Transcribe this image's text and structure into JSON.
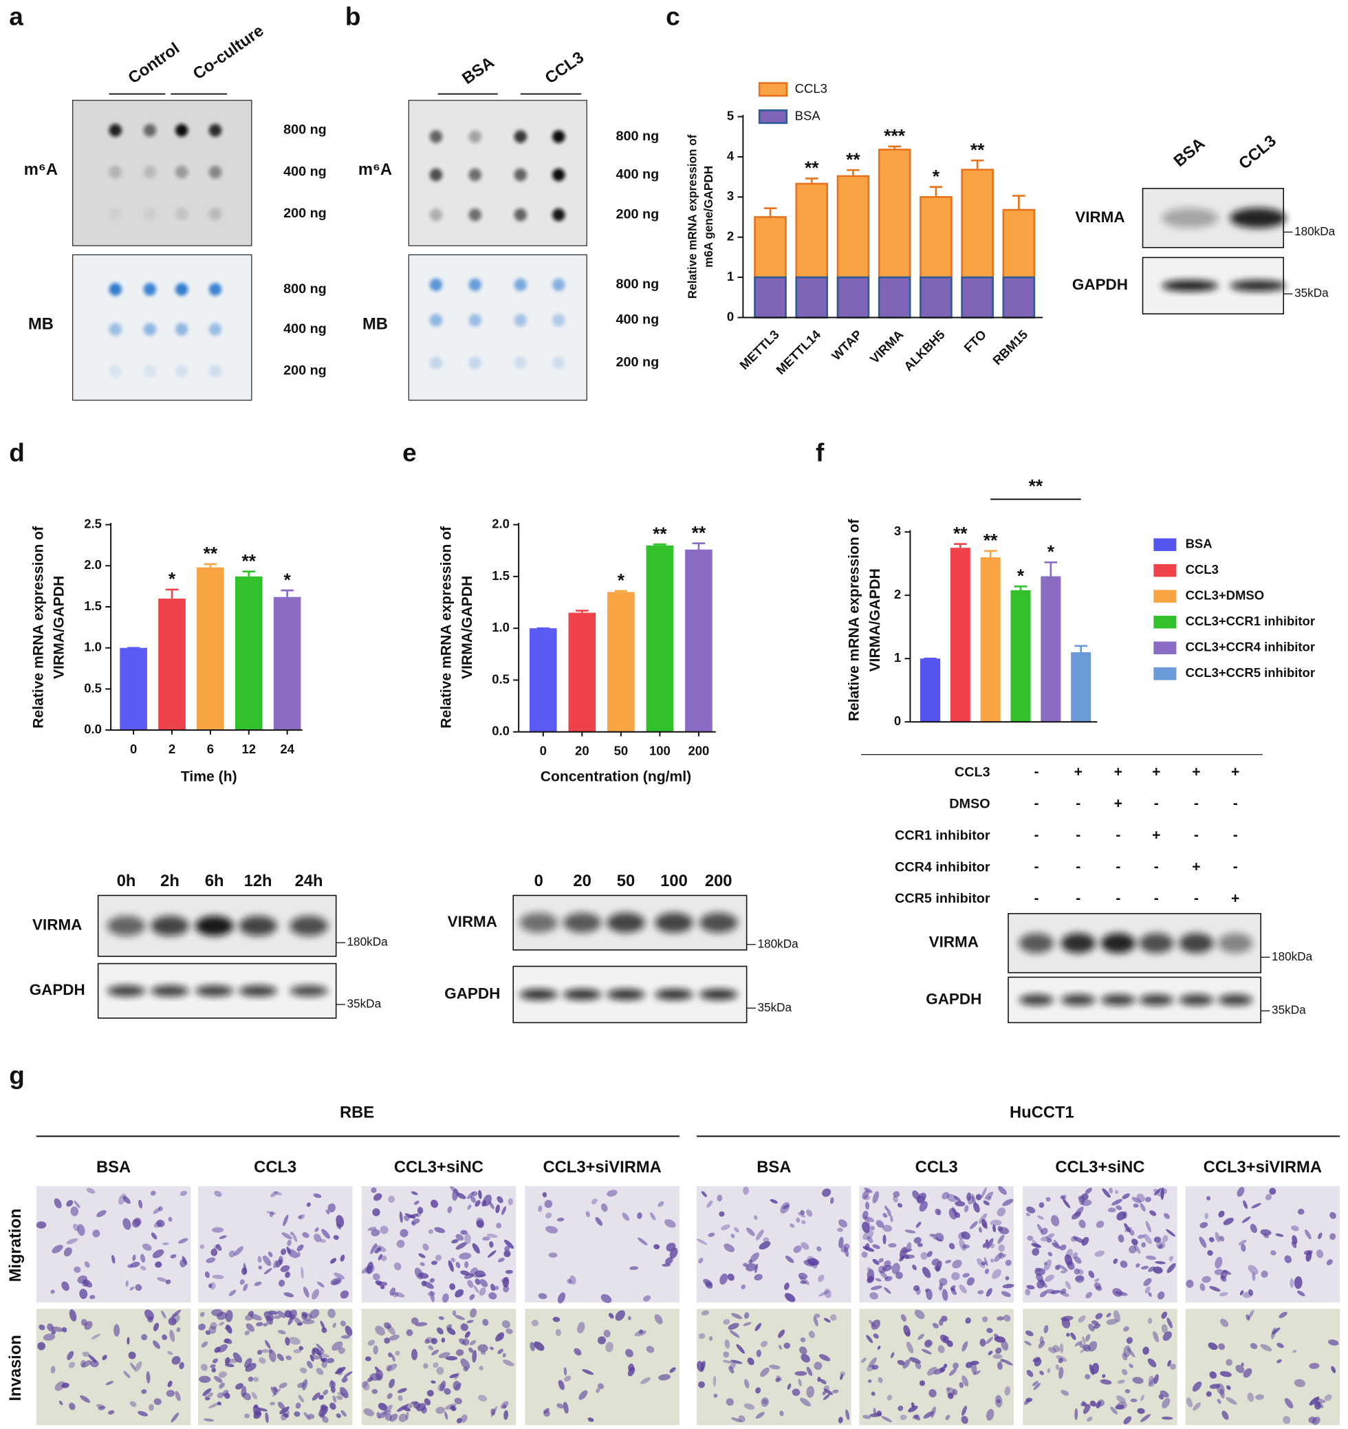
{
  "panel_labels": [
    "a",
    "b",
    "c",
    "d",
    "e",
    "f",
    "g"
  ],
  "dot_blots": [
    {
      "columns": [
        "Control",
        "Co-culture"
      ],
      "rows": [
        "m⁶A",
        "MB"
      ],
      "amounts": [
        "800 ng",
        "400 ng",
        "200 ng"
      ]
    },
    {
      "columns": [
        "BSA",
        "CCL3"
      ],
      "rows": [
        "m⁶A",
        "MB"
      ],
      "amounts": [
        "800 ng",
        "400 ng",
        "200 ng"
      ]
    }
  ],
  "chart_data": [
    {
      "type": "bar",
      "ylabel": [
        "Relative mRNA expression of",
        "m6A gene/GAPDH"
      ],
      "categories": [
        "METTL3",
        "METTL14",
        "WTAP",
        "VIRMA",
        "ALKBH5",
        "FTO",
        "RBM15"
      ],
      "series": [
        {
          "name": "CCL3",
          "color": "#f8a444",
          "edge": "#e8731c",
          "values": [
            2.5,
            3.33,
            3.52,
            4.18,
            3.0,
            3.68,
            2.68
          ],
          "errors": [
            0.22,
            0.13,
            0.15,
            0.08,
            0.25,
            0.23,
            0.35
          ]
        },
        {
          "name": "BSA",
          "color": "#8064b8",
          "edge": "#2e5b9a",
          "values": [
            1,
            1,
            1,
            1,
            1,
            1,
            1
          ]
        }
      ],
      "significance": [
        null,
        "**",
        "**",
        "***",
        "*",
        "**",
        null
      ],
      "highlight": {
        "index": 3,
        "color": "#d0202a"
      },
      "ylim": [
        0,
        5
      ],
      "yticks": [
        0,
        1,
        2,
        3,
        4,
        5
      ]
    },
    {
      "type": "bar",
      "ylabel": [
        "Relative mRNA expression of",
        "VIRMA/GAPDH"
      ],
      "xlabel": "Time (h)",
      "categories": [
        "0",
        "2",
        "6",
        "12",
        "24"
      ],
      "values": [
        1.0,
        1.6,
        1.98,
        1.87,
        1.62
      ],
      "errors": [
        0,
        0.11,
        0.04,
        0.06,
        0.08
      ],
      "colors": [
        "#5b5cf6",
        "#f0424a",
        "#f8a443",
        "#33c12b",
        "#8a6cc4"
      ],
      "significance": [
        null,
        "*",
        "**",
        "**",
        "*"
      ],
      "ylim": [
        0,
        2.5
      ],
      "yticks": [
        {
          "value": 0,
          "label": "0.0"
        },
        {
          "value": 0.5,
          "label": "0.5"
        },
        {
          "value": 1,
          "label": "1.0"
        },
        {
          "value": 1.5,
          "label": "1.5"
        },
        {
          "value": 2,
          "label": "2.0"
        },
        {
          "value": 2.5,
          "label": "2.5"
        }
      ]
    },
    {
      "type": "bar",
      "ylabel": [
        "Relative mRNA expression of",
        "VIRMA/GAPDH"
      ],
      "xlabel": "Concentration (ng/ml)",
      "categories": [
        "0",
        "20",
        "50",
        "100",
        "200"
      ],
      "values": [
        1.0,
        1.15,
        1.35,
        1.8,
        1.76
      ],
      "errors": [
        0,
        0.02,
        0.01,
        0.01,
        0.06
      ],
      "colors": [
        "#5b5cf6",
        "#f0424a",
        "#f8a443",
        "#33c12b",
        "#8a6cc4"
      ],
      "significance": [
        null,
        null,
        "*",
        "**",
        "**"
      ],
      "ylim": [
        0,
        2
      ],
      "yticks": [
        {
          "value": 0,
          "label": "0.0"
        },
        {
          "value": 0.5,
          "label": "0.5"
        },
        {
          "value": 1,
          "label": "1.0"
        },
        {
          "value": 1.5,
          "label": "1.5"
        },
        {
          "value": 2,
          "label": "2.0"
        }
      ]
    },
    {
      "type": "bar",
      "ylabel": [
        "Relative mRNA expression of",
        "VIRMA/GAPDH"
      ],
      "legend": true,
      "categories": [
        "BSA",
        "CCL3",
        "CCL3+DMSO",
        "CCL3+CCR1 inhibitor",
        "CCL3+CCR4 inhibitor",
        "CCL3+CCR5 inhibitor"
      ],
      "values": [
        1.0,
        2.75,
        2.6,
        2.08,
        2.3,
        1.1
      ],
      "errors": [
        0,
        0.06,
        0.1,
        0.06,
        0.22,
        0.1
      ],
      "colors": [
        "#5555ee",
        "#f0424a",
        "#f8a443",
        "#33c12b",
        "#8a6cc4",
        "#6b9bd8"
      ],
      "significance": [
        null,
        "**",
        "**",
        "*",
        "*",
        null
      ],
      "bracket": {
        "from": 2,
        "to": 5,
        "label": "**"
      },
      "ylim": [
        0,
        3
      ],
      "yticks": [
        0,
        1,
        2,
        3
      ]
    }
  ],
  "blots": [
    {
      "lanes": [
        "BSA",
        "CCL3"
      ],
      "proteins": [
        "VIRMA",
        "GAPDH"
      ],
      "markers": [
        "180kDa",
        "35kDa"
      ]
    },
    {
      "lanes": [
        "0h",
        "2h",
        "6h",
        "12h",
        "24h"
      ],
      "proteins": [
        "VIRMA",
        "GAPDH"
      ],
      "markers": [
        "180kDa",
        "35kDa"
      ]
    },
    {
      "lanes": [
        "0",
        "20",
        "50",
        "100",
        "200"
      ],
      "proteins": [
        "VIRMA",
        "GAPDH"
      ],
      "markers": [
        "180kDa",
        "35kDa"
      ]
    },
    {
      "proteins": [
        "VIRMA",
        "GAPDH"
      ],
      "markers": [
        "180kDa",
        "35kDa"
      ]
    }
  ],
  "treatment_table": {
    "rows": [
      {
        "label": "CCL3",
        "cells": [
          "-",
          "+",
          "+",
          "+",
          "+",
          "+"
        ]
      },
      {
        "label": "DMSO",
        "cells": [
          "-",
          "-",
          "+",
          "-",
          "-",
          "-"
        ]
      },
      {
        "label": "CCR1 inhibitor",
        "cells": [
          "-",
          "-",
          "-",
          "+",
          "-",
          "-"
        ]
      },
      {
        "label": "CCR4 inhibitor",
        "cells": [
          "-",
          "-",
          "-",
          "-",
          "+",
          "-"
        ]
      },
      {
        "label": "CCR5 inhibitor",
        "cells": [
          "-",
          "-",
          "-",
          "-",
          "-",
          "+"
        ]
      }
    ]
  },
  "transwell": {
    "cell_lines": [
      "RBE",
      "HuCCT1"
    ],
    "conditions": [
      "BSA",
      "CCL3",
      "CCL3+siNC",
      "CCL3+siVIRMA"
    ],
    "assays": [
      "Migration",
      "Invasion"
    ]
  }
}
